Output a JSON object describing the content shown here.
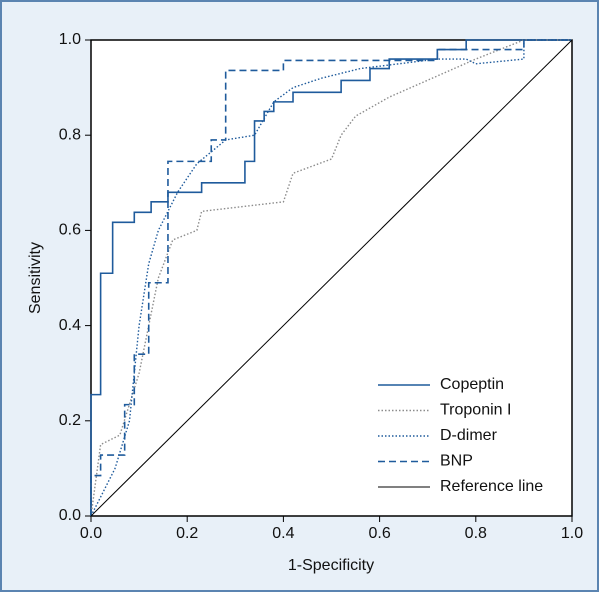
{
  "chart_data": {
    "type": "line",
    "xlabel": "1-Specificity",
    "ylabel": "Sensitivity",
    "xlim": [
      0,
      1
    ],
    "ylim": [
      0,
      1
    ],
    "xticks": [
      {
        "value": 0,
        "label": "0.0"
      },
      0.2,
      0.4,
      0.6,
      0.8,
      {
        "value": 1,
        "label": "1.0"
      }
    ],
    "yticks": [
      {
        "value": 0,
        "label": "0.0"
      },
      0.2,
      0.4,
      0.6,
      0.8,
      {
        "value": 1,
        "label": "1.0"
      }
    ],
    "legend": "lower right",
    "series": [
      {
        "name": "Copeptin",
        "color": "#1f5b9c",
        "style": "solid",
        "x": [
          0,
          0,
          0.02,
          0.02,
          0.045,
          0.045,
          0.09,
          0.09,
          0.125,
          0.125,
          0.16,
          0.16,
          0.23,
          0.23,
          0.32,
          0.32,
          0.34,
          0.34,
          0.36,
          0.36,
          0.38,
          0.38,
          0.42,
          0.42,
          0.52,
          0.52,
          0.58,
          0.58,
          0.62,
          0.62,
          0.72,
          0.72,
          0.78,
          0.78,
          1
        ],
        "values": [
          0,
          0.255,
          0.255,
          0.51,
          0.51,
          0.617,
          0.617,
          0.638,
          0.638,
          0.66,
          0.66,
          0.68,
          0.68,
          0.7,
          0.7,
          0.745,
          0.745,
          0.83,
          0.83,
          0.85,
          0.85,
          0.87,
          0.87,
          0.89,
          0.89,
          0.915,
          0.915,
          0.94,
          0.94,
          0.96,
          0.96,
          0.98,
          0.98,
          1,
          1
        ]
      },
      {
        "name": "Troponin I",
        "color": "#8c8c8c",
        "style": "dotted",
        "x": [
          0,
          0.02,
          0.06,
          0.1,
          0.14,
          0.17,
          0.22,
          0.23,
          0.4,
          0.42,
          0.5,
          0.52,
          0.55,
          0.62,
          0.8,
          0.9,
          1
        ],
        "values": [
          0,
          0.15,
          0.17,
          0.3,
          0.5,
          0.58,
          0.6,
          0.64,
          0.66,
          0.72,
          0.75,
          0.8,
          0.84,
          0.88,
          0.96,
          1,
          1
        ]
      },
      {
        "name": "D-dimer",
        "color": "#1f5b9c",
        "style": "dotted",
        "x": [
          0,
          0.05,
          0.08,
          0.1,
          0.12,
          0.14,
          0.18,
          0.22,
          0.28,
          0.34,
          0.38,
          0.42,
          0.48,
          0.56,
          0.72,
          0.78,
          0.8,
          0.9,
          0.9,
          1
        ],
        "values": [
          0,
          0.1,
          0.2,
          0.4,
          0.53,
          0.6,
          0.68,
          0.74,
          0.79,
          0.8,
          0.87,
          0.9,
          0.92,
          0.94,
          0.96,
          0.96,
          0.95,
          0.96,
          1,
          1
        ]
      },
      {
        "name": "BNP",
        "color": "#1f5b9c",
        "style": "dashed",
        "x": [
          0,
          0,
          0.02,
          0.02,
          0.07,
          0.07,
          0.09,
          0.09,
          0.12,
          0.12,
          0.16,
          0.16,
          0.25,
          0.25,
          0.28,
          0.28,
          0.4,
          0.4,
          0.72,
          0.72,
          0.9,
          0.9,
          1
        ],
        "values": [
          0,
          0.085,
          0.085,
          0.128,
          0.128,
          0.234,
          0.234,
          0.34,
          0.34,
          0.49,
          0.49,
          0.745,
          0.745,
          0.79,
          0.79,
          0.936,
          0.936,
          0.957,
          0.957,
          0.98,
          0.98,
          1,
          1
        ]
      },
      {
        "name": "Reference line",
        "color": "#000000",
        "style": "thin",
        "x": [
          0,
          1
        ],
        "values": [
          0,
          1
        ]
      }
    ]
  }
}
